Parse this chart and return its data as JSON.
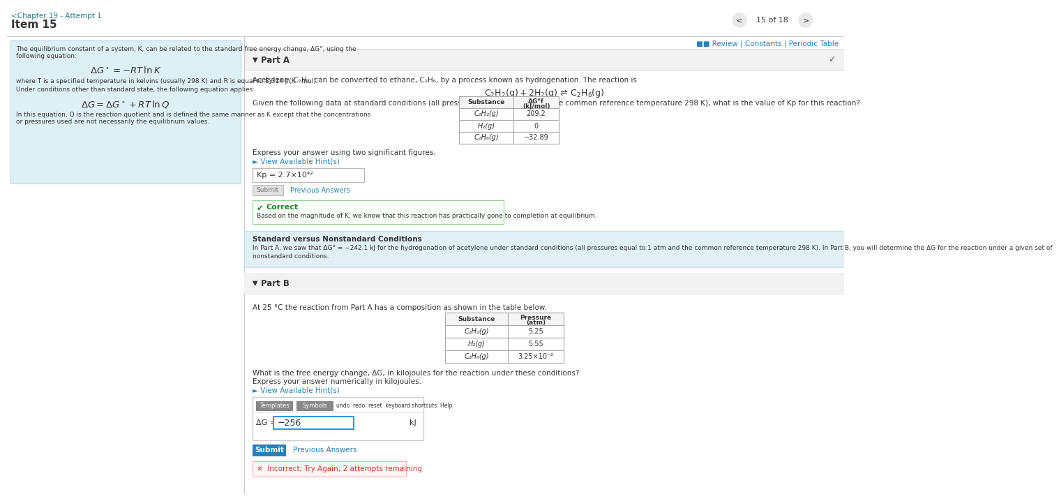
{
  "page_title": "<Chapter 19 - Attempt 1",
  "item": "Item 15",
  "nav_text": "15 of 18",
  "review_links": "Review | Constants | Periodic Table",
  "part_a_label": "Part A",
  "part_a_intro": "Acetylene, C₂H₂, can be converted to ethane, C₂H₆, by a process known as hydrogenation. The reaction is",
  "part_a_question": "Given the following data at standard conditions (all pressures equal to 1 atm and the common reference temperature 298 K), what is the value of Kp for this reaction?",
  "table_a_headers": [
    "Substance",
    "ΔG°f\n(kJ/mol)"
  ],
  "table_a_data": [
    [
      "C₂H₂(g)",
      "209.2"
    ],
    [
      "H₂(g)",
      "0"
    ],
    [
      "C₂H₆(g)",
      "−32.89"
    ]
  ],
  "sig_figs_text": "Express your answer using two significant figures.",
  "hint_link": "► View Available Hint(s)",
  "kp_answer": "Kp = 2.7×10⁴²",
  "submit_btn_a": "Submit",
  "prev_answers": "Previous Answers",
  "correct_text": "Correct",
  "correct_detail": "Based on the magnitude of K, we know that this reaction has practically gone to completion at equilibrium.",
  "banner_title": "Standard versus Nonstandard Conditions",
  "banner_line1": "In Part A, we saw that ΔG° = −242.1 kJ for the hydrogenation of acetylene under standard conditions (all pressures equal to 1 atm and the common reference temperature 298 K). In Part B, you will determine the ΔG for the reaction under a given set of",
  "banner_line2": "nonstandard conditions.",
  "part_b_label": "Part B",
  "part_b_intro": "At 25 °C the reaction from Part A has a composition as shown in the table below.",
  "table_b_headers": [
    "Substance",
    "Pressure\n(atm)"
  ],
  "table_b_data": [
    [
      "C₂H₂(g)",
      "5.25"
    ],
    [
      "H₂(g)",
      "5.55"
    ],
    [
      "C₂H₆(g)",
      "3.25×10⁻²"
    ]
  ],
  "part_b_question1": "What is the free energy change, ΔG, in kilojoules for the reaction under these conditions?",
  "part_b_question2": "Express your answer numerically in kilojoules.",
  "ag_answer": "−256",
  "ag_label": "ΔG =",
  "ag_unit": "kJ",
  "submit_btn_b": "Submit",
  "prev_answers_b": "Previous Answers",
  "incorrect_text": "✕  Incorrect; Try Again; 2 attempts remaining",
  "left_text_lines": [
    "The equilibrium constant of a system, K, can be related to the standard free energy change, ΔG°, using the",
    "following equation:"
  ],
  "left_eq1": "ΔG° = −RT ln K",
  "left_mid1": "where T is a specified temperature in kelvins (usually 298 K) and R is equal to 8.314 J/(K · mol).",
  "left_mid2": "Under conditions other than standard state, the following equation applies:",
  "left_eq2": "ΔG = ΔG° + RT ln Q",
  "left_bot1": "In this equation, Q is the reaction quotient and is defined the same manner as K except that the concentrations",
  "left_bot2": "or pressures used are not necessarily the equilibrium values.",
  "bg_white": "#ffffff",
  "bg_left_panel": "#ddf0f5",
  "bg_part_header": "#eeeeee",
  "bg_banner": "#e0f0f5",
  "bg_correct": "#f5fff5",
  "bg_incorrect": "#fff5f5",
  "color_teal": "#2e7d8e",
  "color_link": "#2980b9",
  "color_dark": "#333333",
  "color_gray": "#888888",
  "color_correct_green": "#2e7d32",
  "color_incorrect_red": "#c0392b",
  "color_submit_blue": "#2980b9",
  "color_border": "#cccccc",
  "color_input_blue": "#3498db"
}
